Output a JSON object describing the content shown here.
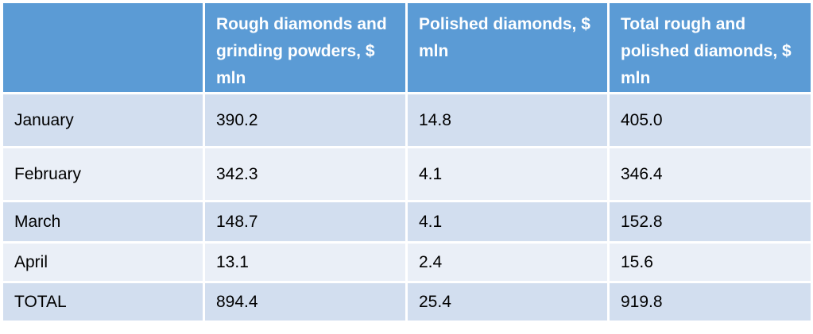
{
  "table": {
    "header": [
      "Rough diamonds and grinding powders, $ mln",
      "Polished diamonds, $ mln",
      "Total rough and polished diamonds, $ mln"
    ],
    "rows": [
      [
        "January",
        "390.2",
        "14.8",
        "405.0"
      ],
      [
        "February",
        "342.3",
        "4.1",
        "346.4"
      ],
      [
        "March",
        "148.7",
        "4.1",
        "152.8"
      ],
      [
        "April",
        "13.1",
        "2.4",
        "15.6"
      ],
      [
        "TOTAL",
        "894.4",
        "25.4",
        "919.8"
      ]
    ]
  }
}
